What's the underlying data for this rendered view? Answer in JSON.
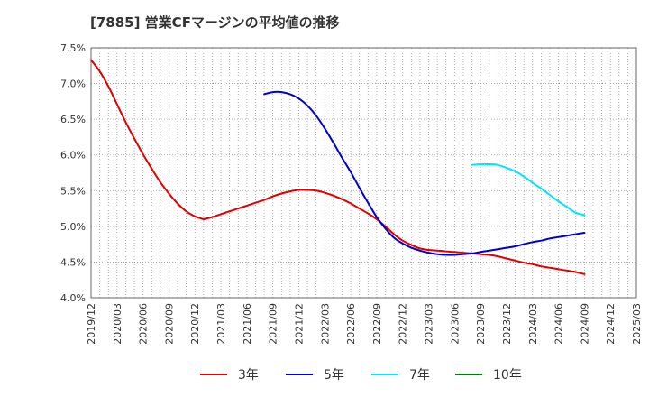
{
  "title": "[7885]  営業CFマージンの平均値の推移",
  "chart_data": {
    "type": "line",
    "ylim": [
      4.0,
      7.5
    ],
    "yticks": [
      "7.5%",
      "7.0%",
      "6.5%",
      "6.0%",
      "5.5%",
      "5.0%",
      "4.5%",
      "4.0%"
    ],
    "ytick_values": [
      7.5,
      7.0,
      6.5,
      6.0,
      5.5,
      5.0,
      4.5,
      4.0
    ],
    "xticks": [
      "2019/12",
      "2020/03",
      "2020/06",
      "2020/09",
      "2020/12",
      "2021/03",
      "2021/06",
      "2021/09",
      "2021/12",
      "2022/03",
      "2022/06",
      "2022/09",
      "2022/12",
      "2023/03",
      "2023/06",
      "2023/09",
      "2023/12",
      "2024/03",
      "2024/06",
      "2024/09",
      "2024/12",
      "2025/03"
    ],
    "grid": true,
    "legend_position": "bottom",
    "series": [
      {
        "name": "3年",
        "color": "#e00000",
        "points": [
          [
            "2019/12",
            7.33
          ],
          [
            "2020/01",
            7.17
          ],
          [
            "2020/02",
            6.96
          ],
          [
            "2020/03",
            6.71
          ],
          [
            "2020/04",
            6.46
          ],
          [
            "2020/05",
            6.23
          ],
          [
            "2020/06",
            6.01
          ],
          [
            "2020/07",
            5.81
          ],
          [
            "2020/08",
            5.62
          ],
          [
            "2020/09",
            5.46
          ],
          [
            "2020/10",
            5.32
          ],
          [
            "2020/11",
            5.21
          ],
          [
            "2020/12",
            5.14
          ],
          [
            "2020/13",
            5.1
          ],
          [
            "2021/01",
            5.1
          ],
          [
            "2021/02",
            5.13
          ],
          [
            "2021/03",
            5.17
          ],
          [
            "2021/04",
            5.21
          ],
          [
            "2021/05",
            5.25
          ],
          [
            "2021/06",
            5.29
          ],
          [
            "2021/07",
            5.33
          ],
          [
            "2021/08",
            5.37
          ],
          [
            "2021/09",
            5.42
          ],
          [
            "2021/10",
            5.46
          ],
          [
            "2021/11",
            5.49
          ],
          [
            "2021/12",
            5.51
          ],
          [
            "2022/01",
            5.51
          ],
          [
            "2022/02",
            5.5
          ],
          [
            "2022/03",
            5.47
          ],
          [
            "2022/04",
            5.43
          ],
          [
            "2022/05",
            5.38
          ],
          [
            "2022/06",
            5.32
          ],
          [
            "2022/07",
            5.25
          ],
          [
            "2022/08",
            5.18
          ],
          [
            "2022/09",
            5.1
          ],
          [
            "2022/10",
            5.0
          ],
          [
            "2022/11",
            4.89
          ],
          [
            "2022/12",
            4.8
          ],
          [
            "2023/01",
            4.74
          ],
          [
            "2023/02",
            4.69
          ],
          [
            "2023/03",
            4.67
          ],
          [
            "2023/04",
            4.66
          ],
          [
            "2023/05",
            4.65
          ],
          [
            "2023/06",
            4.64
          ],
          [
            "2023/07",
            4.63
          ],
          [
            "2023/08",
            4.62
          ],
          [
            "2023/09",
            4.61
          ],
          [
            "2023/10",
            4.6
          ],
          [
            "2023/11",
            4.58
          ],
          [
            "2023/12",
            4.55
          ],
          [
            "2024/01",
            4.52
          ],
          [
            "2024/02",
            4.49
          ],
          [
            "2024/03",
            4.47
          ],
          [
            "2024/04",
            4.44
          ],
          [
            "2024/05",
            4.42
          ],
          [
            "2024/06",
            4.4
          ],
          [
            "2024/07",
            4.38
          ],
          [
            "2024/08",
            4.36
          ],
          [
            "2024/09",
            4.33
          ]
        ]
      },
      {
        "name": "5年",
        "color": "#0000cc",
        "points": [
          [
            "2021/08",
            6.85
          ],
          [
            "2021/09",
            6.88
          ],
          [
            "2021/10",
            6.88
          ],
          [
            "2021/11",
            6.85
          ],
          [
            "2021/12",
            6.79
          ],
          [
            "2022/01",
            6.69
          ],
          [
            "2022/02",
            6.55
          ],
          [
            "2022/03",
            6.37
          ],
          [
            "2022/04",
            6.17
          ],
          [
            "2022/05",
            5.96
          ],
          [
            "2022/06",
            5.76
          ],
          [
            "2022/07",
            5.54
          ],
          [
            "2022/08",
            5.33
          ],
          [
            "2022/09",
            5.13
          ],
          [
            "2022/10",
            4.97
          ],
          [
            "2022/11",
            4.84
          ],
          [
            "2022/12",
            4.76
          ],
          [
            "2023/01",
            4.7
          ],
          [
            "2023/02",
            4.66
          ],
          [
            "2023/03",
            4.63
          ],
          [
            "2023/04",
            4.61
          ],
          [
            "2023/05",
            4.6
          ],
          [
            "2023/06",
            4.6
          ],
          [
            "2023/07",
            4.61
          ],
          [
            "2023/08",
            4.62
          ],
          [
            "2023/09",
            4.64
          ],
          [
            "2023/10",
            4.66
          ],
          [
            "2023/11",
            4.68
          ],
          [
            "2023/12",
            4.7
          ],
          [
            "2024/01",
            4.72
          ],
          [
            "2024/02",
            4.75
          ],
          [
            "2024/03",
            4.78
          ],
          [
            "2024/04",
            4.8
          ],
          [
            "2024/05",
            4.83
          ],
          [
            "2024/06",
            4.85
          ],
          [
            "2024/07",
            4.87
          ],
          [
            "2024/08",
            4.89
          ],
          [
            "2024/09",
            4.91
          ]
        ]
      },
      {
        "name": "7年",
        "color": "#00e5ff",
        "points": [
          [
            "2023/08",
            5.86
          ],
          [
            "2023/09",
            5.87
          ],
          [
            "2023/10",
            5.87
          ],
          [
            "2023/11",
            5.86
          ],
          [
            "2023/12",
            5.82
          ],
          [
            "2024/01",
            5.77
          ],
          [
            "2024/02",
            5.7
          ],
          [
            "2024/03",
            5.61
          ],
          [
            "2024/04",
            5.53
          ],
          [
            "2024/05",
            5.44
          ],
          [
            "2024/06",
            5.35
          ],
          [
            "2024/07",
            5.27
          ],
          [
            "2024/08",
            5.19
          ],
          [
            "2024/09",
            5.16
          ]
        ]
      },
      {
        "name": "10年",
        "color": "#008000",
        "points": []
      }
    ]
  }
}
